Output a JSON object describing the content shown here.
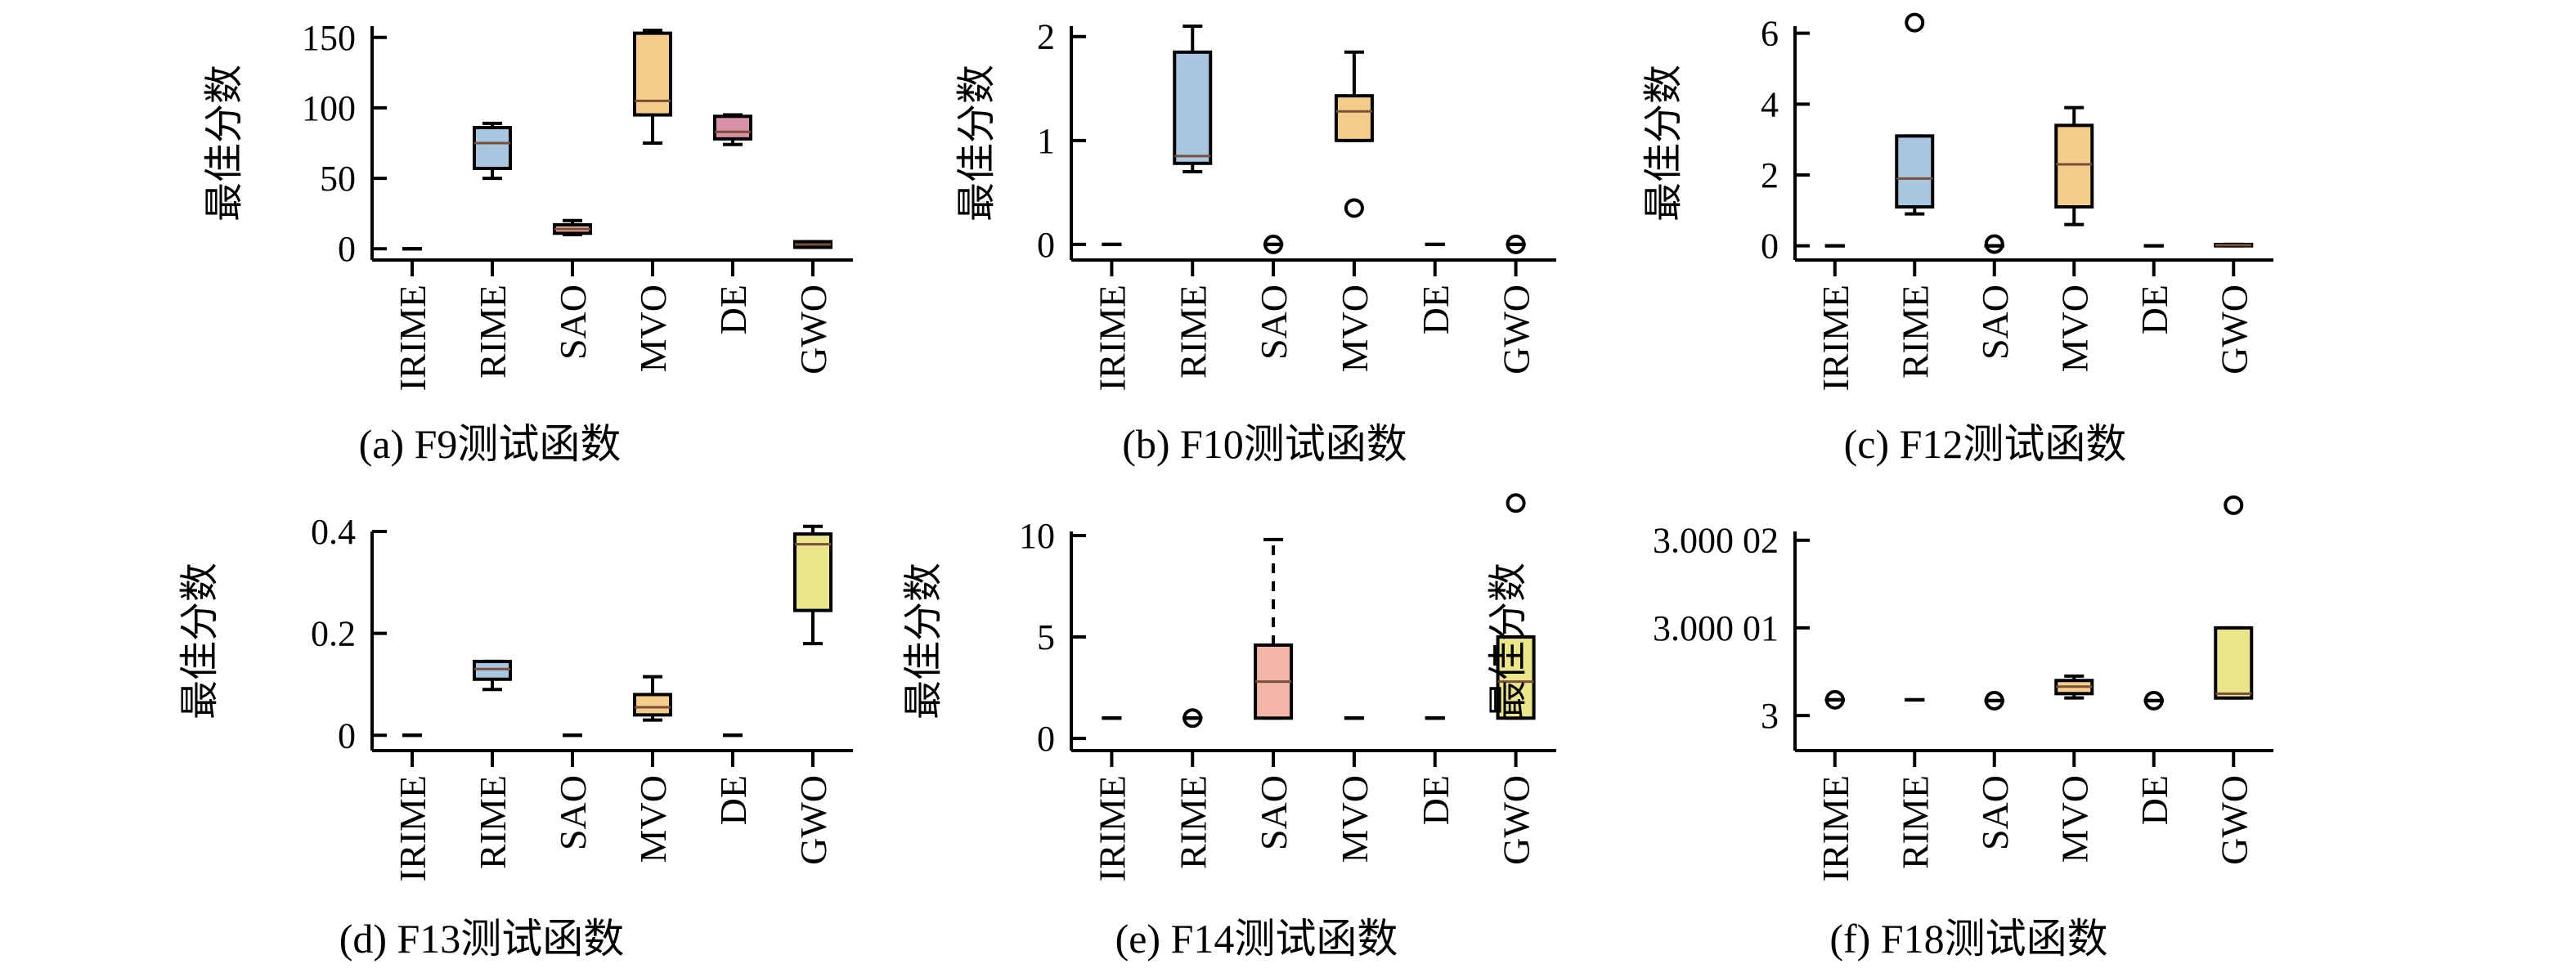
{
  "colors": {
    "IRIME": "#7fb3a6",
    "RIME": "#a9c6e1",
    "SAO": "#f3b5a6",
    "MVO": "#f5cd8a",
    "DE": "#d892a8",
    "GWO": "#ebe58a",
    "axis": "#000000"
  },
  "chart_data": [
    {
      "type": "box",
      "caption": "(a) F9测试函数",
      "ylabel": "最佳分数",
      "categories": [
        "IRIME",
        "RIME",
        "SAO",
        "MVO",
        "DE",
        "GWO"
      ],
      "ylim": [
        -8,
        158
      ],
      "yticks": [
        0,
        50,
        100,
        150
      ],
      "ytick_labels": [
        "0",
        "50",
        "100",
        "150"
      ],
      "boxes": [
        {
          "name": "IRIME",
          "min": 0,
          "q1": 0,
          "median": 0,
          "q3": 0,
          "max": 0,
          "outliers": []
        },
        {
          "name": "RIME",
          "min": 50,
          "q1": 57,
          "median": 75,
          "q3": 86,
          "max": 89,
          "outliers": []
        },
        {
          "name": "SAO",
          "min": 10,
          "q1": 11,
          "median": 14,
          "q3": 17,
          "max": 20,
          "outliers": []
        },
        {
          "name": "MVO",
          "min": 75,
          "q1": 95,
          "median": 105,
          "q3": 153,
          "max": 155,
          "outliers": []
        },
        {
          "name": "DE",
          "min": 74,
          "q1": 78,
          "median": 83,
          "q3": 94,
          "max": 95,
          "outliers": []
        },
        {
          "name": "GWO",
          "min": 1,
          "q1": 1,
          "median": 3,
          "q3": 5,
          "max": 5,
          "outliers": []
        }
      ]
    },
    {
      "type": "box",
      "caption": "(b) F10测试函数",
      "ylabel": "最佳分数",
      "categories": [
        "IRIME",
        "RIME",
        "SAO",
        "MVO",
        "DE",
        "GWO"
      ],
      "ylim": [
        -0.15,
        2.1
      ],
      "yticks": [
        0,
        1,
        2
      ],
      "ytick_labels": [
        "0",
        "1",
        "2"
      ],
      "boxes": [
        {
          "name": "IRIME",
          "min": 0,
          "q1": 0,
          "median": 0,
          "q3": 0,
          "max": 0,
          "outliers": []
        },
        {
          "name": "RIME",
          "min": 0.7,
          "q1": 0.78,
          "median": 0.85,
          "q3": 1.85,
          "max": 2.1,
          "outliers": []
        },
        {
          "name": "SAO",
          "min": 0,
          "q1": 0,
          "median": 0,
          "q3": 0,
          "max": 0,
          "outliers": [
            0
          ]
        },
        {
          "name": "MVO",
          "min": 1.0,
          "q1": 1.0,
          "median": 1.28,
          "q3": 1.43,
          "max": 1.85,
          "outliers": [
            0.35
          ]
        },
        {
          "name": "DE",
          "min": 0,
          "q1": 0,
          "median": 0,
          "q3": 0,
          "max": 0,
          "outliers": []
        },
        {
          "name": "GWO",
          "min": 0,
          "q1": 0,
          "median": 0,
          "q3": 0,
          "max": 0,
          "outliers": [
            0
          ]
        }
      ]
    },
    {
      "type": "box",
      "caption": "(c) F12测试函数",
      "ylabel": "最佳分数",
      "categories": [
        "IRIME",
        "RIME",
        "SAO",
        "MVO",
        "DE",
        "GWO"
      ],
      "ylim": [
        -0.4,
        6.2
      ],
      "yticks": [
        0,
        2,
        4,
        6
      ],
      "ytick_labels": [
        "0",
        "2",
        "4",
        "6"
      ],
      "boxes": [
        {
          "name": "IRIME",
          "min": 0,
          "q1": 0,
          "median": 0,
          "q3": 0,
          "max": 0,
          "outliers": []
        },
        {
          "name": "RIME",
          "min": 0.9,
          "q1": 1.1,
          "median": 1.9,
          "q3": 3.1,
          "max": 3.1,
          "outliers": [
            6.3
          ]
        },
        {
          "name": "SAO",
          "min": 0,
          "q1": 0,
          "median": 0,
          "q3": 0,
          "max": 0,
          "outliers": [
            0.05
          ]
        },
        {
          "name": "MVO",
          "min": 0.6,
          "q1": 1.1,
          "median": 2.3,
          "q3": 3.4,
          "max": 3.9,
          "outliers": []
        },
        {
          "name": "DE",
          "min": 0,
          "q1": 0,
          "median": 0,
          "q3": 0,
          "max": 0,
          "outliers": []
        },
        {
          "name": "GWO",
          "min": 0,
          "q1": 0,
          "median": 0.02,
          "q3": 0.04,
          "max": 0.04,
          "outliers": []
        }
      ]
    },
    {
      "type": "box",
      "caption": "(d) F13测试函数",
      "ylabel": "最佳分数",
      "categories": [
        "IRIME",
        "RIME",
        "SAO",
        "MVO",
        "DE",
        "GWO"
      ],
      "ylim": [
        -0.03,
        0.4
      ],
      "yticks": [
        0,
        0.2,
        0.4
      ],
      "ytick_labels": [
        "0",
        "0.2",
        "0.4"
      ],
      "boxes": [
        {
          "name": "IRIME",
          "min": 0,
          "q1": 0,
          "median": 0,
          "q3": 0,
          "max": 0,
          "outliers": []
        },
        {
          "name": "RIME",
          "min": 0.09,
          "q1": 0.11,
          "median": 0.13,
          "q3": 0.145,
          "max": 0.145,
          "outliers": []
        },
        {
          "name": "SAO",
          "min": 0,
          "q1": 0,
          "median": 0,
          "q3": 0,
          "max": 0,
          "outliers": []
        },
        {
          "name": "MVO",
          "min": 0.03,
          "q1": 0.04,
          "median": 0.055,
          "q3": 0.08,
          "max": 0.115,
          "outliers": []
        },
        {
          "name": "DE",
          "min": 0,
          "q1": 0,
          "median": 0,
          "q3": 0,
          "max": 0,
          "outliers": []
        },
        {
          "name": "GWO",
          "min": 0.18,
          "q1": 0.245,
          "median": 0.375,
          "q3": 0.395,
          "max": 0.41,
          "outliers": []
        }
      ]
    },
    {
      "type": "box",
      "caption": "(e) F14测试函数",
      "ylabel": "最佳分数",
      "categories": [
        "IRIME",
        "RIME",
        "SAO",
        "MVO",
        "DE",
        "GWO"
      ],
      "ylim": [
        -0.6,
        10.2
      ],
      "yticks": [
        0,
        5,
        10
      ],
      "ytick_labels": [
        "0",
        "5",
        "10"
      ],
      "boxes": [
        {
          "name": "IRIME",
          "min": 1,
          "q1": 1,
          "median": 1,
          "q3": 1,
          "max": 1,
          "outliers": []
        },
        {
          "name": "RIME",
          "min": 1,
          "q1": 1,
          "median": 1,
          "q3": 1,
          "max": 1,
          "outliers": [
            1
          ]
        },
        {
          "name": "SAO",
          "min": 1,
          "q1": 1,
          "median": 2.8,
          "q3": 4.6,
          "max": 9.8,
          "outliers": []
        },
        {
          "name": "MVO",
          "min": 1,
          "q1": 1,
          "median": 1,
          "q3": 1,
          "max": 1,
          "outliers": []
        },
        {
          "name": "DE",
          "min": 1,
          "q1": 1,
          "median": 1,
          "q3": 1,
          "max": 1,
          "outliers": []
        },
        {
          "name": "GWO",
          "min": 1,
          "q1": 1,
          "median": 2.8,
          "q3": 5.0,
          "max": 5.0,
          "outliers": [
            11.6
          ]
        }
      ]
    },
    {
      "type": "box",
      "caption": "(f) F18测试函数",
      "ylabel": "最佳分数",
      "categories": [
        "IRIME",
        "RIME",
        "SAO",
        "MVO",
        "DE",
        "GWO"
      ],
      "ylim": [
        2.999996,
        3.000021
      ],
      "yticks": [
        3,
        3.00001,
        3.00002
      ],
      "ytick_labels": [
        "3",
        "3.000 01",
        "3.000 02"
      ],
      "boxes": [
        {
          "name": "IRIME",
          "min": 3.0000018,
          "q1": 3.0000018,
          "median": 3.0000018,
          "q3": 3.0000018,
          "max": 3.0000018,
          "outliers": [
            3.0000018
          ]
        },
        {
          "name": "RIME",
          "min": 3.0000018,
          "q1": 3.0000018,
          "median": 3.0000018,
          "q3": 3.0000018,
          "max": 3.0000018,
          "outliers": []
        },
        {
          "name": "SAO",
          "min": 3.0000017,
          "q1": 3.0000017,
          "median": 3.0000017,
          "q3": 3.0000017,
          "max": 3.0000017,
          "outliers": [
            3.0000017
          ]
        },
        {
          "name": "MVO",
          "min": 3.000002,
          "q1": 3.0000025,
          "median": 3.0000033,
          "q3": 3.000004,
          "max": 3.0000045,
          "outliers": []
        },
        {
          "name": "DE",
          "min": 3.0000017,
          "q1": 3.0000017,
          "median": 3.0000017,
          "q3": 3.0000017,
          "max": 3.0000017,
          "outliers": [
            3.0000017
          ]
        },
        {
          "name": "GWO",
          "min": 3.000002,
          "q1": 3.000002,
          "median": 3.0000025,
          "q3": 3.00001,
          "max": 3.00001,
          "outliers": [
            3.000024
          ]
        }
      ]
    }
  ]
}
